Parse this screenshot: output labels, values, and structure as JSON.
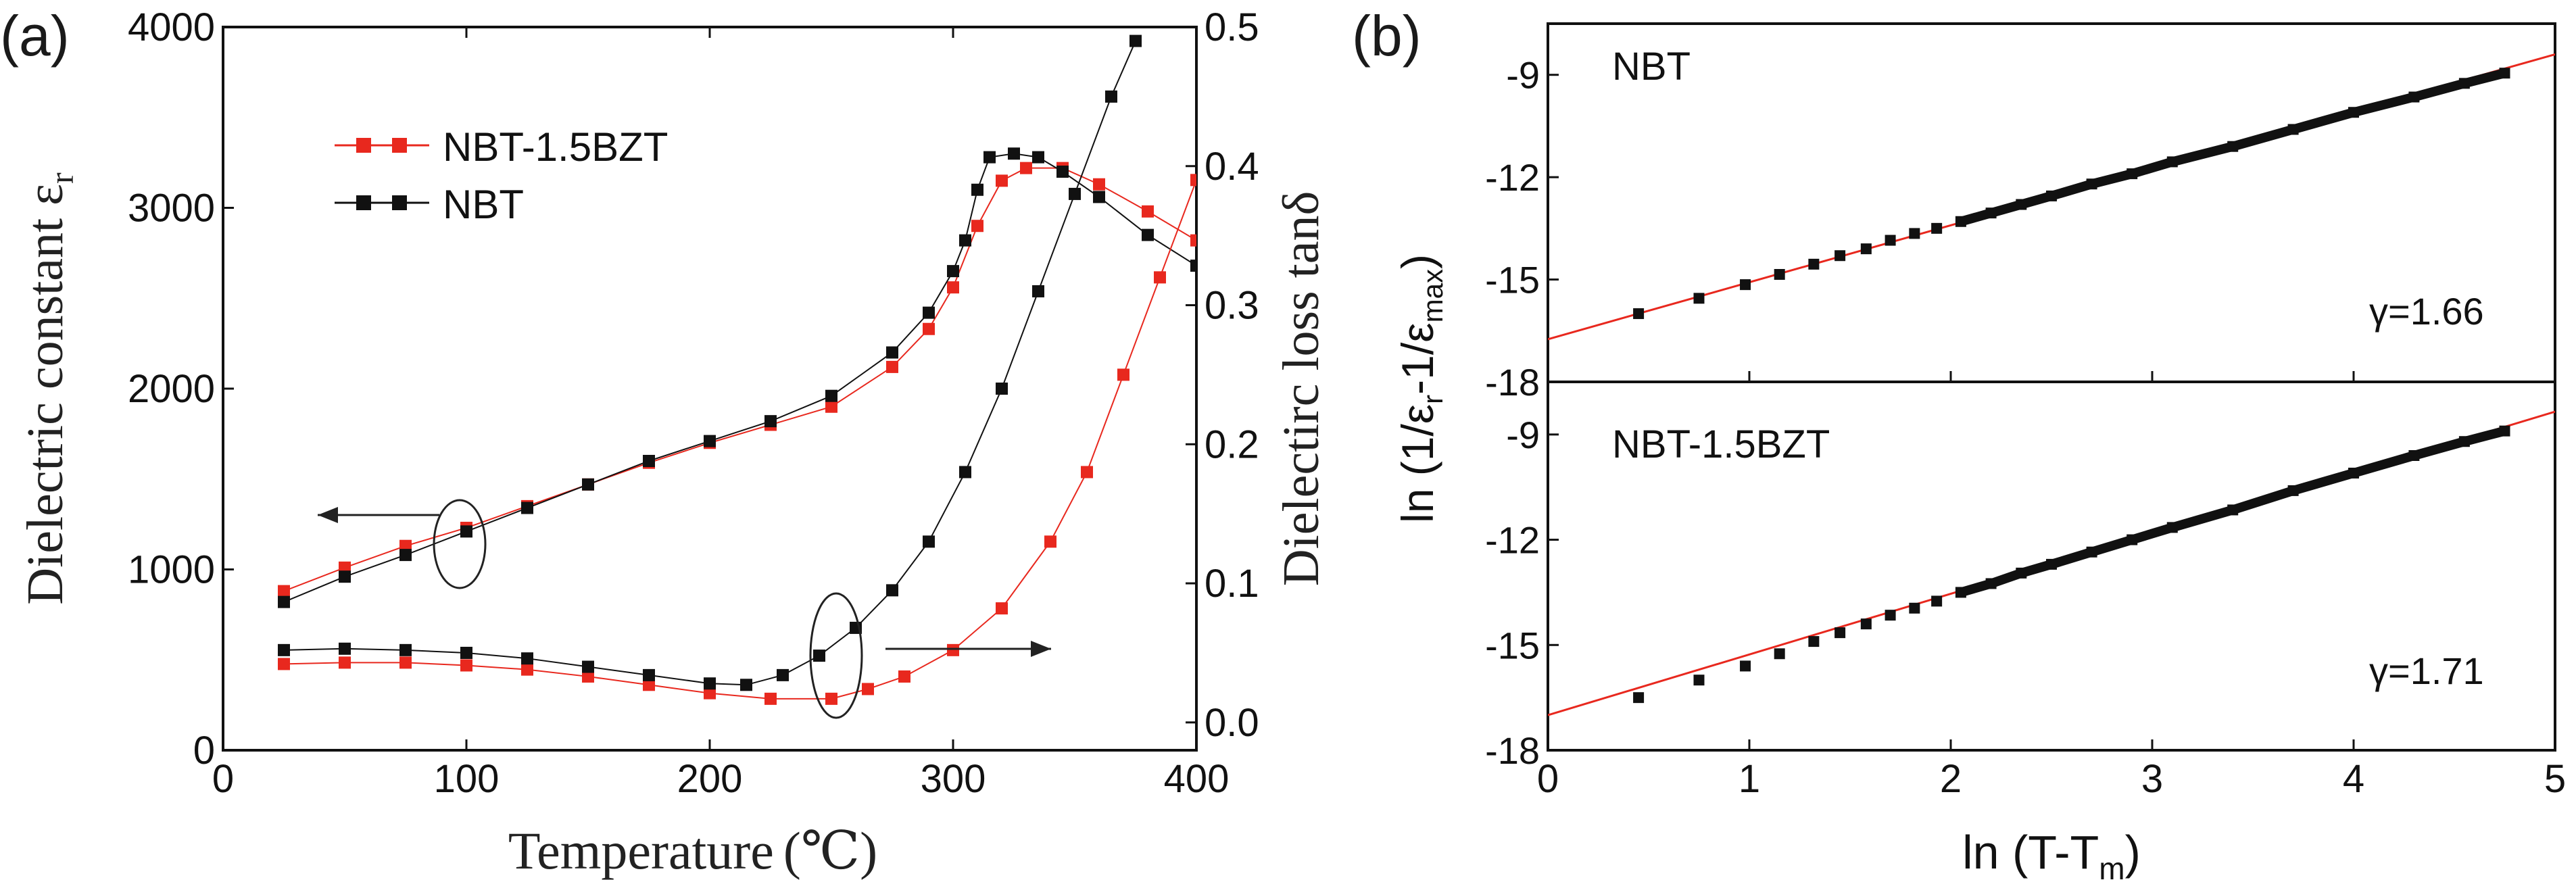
{
  "chart_data": [
    {
      "panel_label": "(a)",
      "type": "scatter",
      "title": "",
      "xlabel_main": "Temperature",
      "xlabel_unit": "(℃)",
      "ylabel_left": "Dielectric constant ε",
      "ylabel_left_sub": "r",
      "ylabel_right": "Dielectirc loss tanδ",
      "xlim": [
        0,
        400
      ],
      "ylim_left": [
        0,
        4000
      ],
      "ylim_right": [
        -0.02,
        0.5
      ],
      "x_ticks": [
        "0",
        "100",
        "200",
        "300",
        "400"
      ],
      "y_left_ticks": [
        "0",
        "1000",
        "2000",
        "3000",
        "4000"
      ],
      "y_right_ticks": [
        "0.0",
        "0.1",
        "0.2",
        "0.3",
        "0.4",
        "0.5"
      ],
      "legend": [
        {
          "name": "NBT-1.5BZT",
          "color": "#e8281e"
        },
        {
          "name": "NBT",
          "color": "#111111"
        }
      ],
      "series": [
        {
          "name": "NBT-1.5BZT",
          "quantity": "dielectric constant",
          "axis": "left",
          "color": "#e8281e",
          "x": [
            25,
            50,
            75,
            100,
            125,
            150,
            175,
            200,
            225,
            250,
            275,
            290,
            300,
            310,
            320,
            330,
            345,
            360,
            380,
            400
          ],
          "y": [
            880,
            1010,
            1130,
            1230,
            1350,
            1470,
            1590,
            1700,
            1800,
            1900,
            2120,
            2330,
            2560,
            2900,
            3150,
            3220,
            3220,
            3130,
            2980,
            2820
          ]
        },
        {
          "name": "NBT",
          "quantity": "dielectric constant",
          "axis": "left",
          "color": "#111111",
          "x": [
            25,
            50,
            75,
            100,
            125,
            150,
            175,
            200,
            225,
            250,
            275,
            290,
            300,
            305,
            310,
            315,
            325,
            335,
            345,
            360,
            380,
            400
          ],
          "y": [
            820,
            960,
            1080,
            1210,
            1340,
            1470,
            1600,
            1710,
            1820,
            1960,
            2200,
            2420,
            2650,
            2820,
            3100,
            3280,
            3300,
            3280,
            3200,
            3060,
            2850,
            2680
          ]
        },
        {
          "name": "NBT-1.5BZT",
          "quantity": "dielectric loss",
          "axis": "right",
          "color": "#e8281e",
          "x": [
            25,
            50,
            75,
            100,
            125,
            150,
            175,
            200,
            225,
            250,
            265,
            280,
            300,
            320,
            340,
            355,
            370,
            385,
            400
          ],
          "y": [
            0.042,
            0.043,
            0.043,
            0.041,
            0.038,
            0.033,
            0.027,
            0.021,
            0.017,
            0.017,
            0.024,
            0.033,
            0.052,
            0.082,
            0.13,
            0.18,
            0.25,
            0.32,
            0.39
          ]
        },
        {
          "name": "NBT",
          "quantity": "dielectric loss",
          "axis": "right",
          "color": "#111111",
          "x": [
            25,
            50,
            75,
            100,
            125,
            150,
            175,
            200,
            215,
            230,
            245,
            260,
            275,
            290,
            305,
            320,
            335,
            350,
            365,
            375
          ],
          "y": [
            0.052,
            0.053,
            0.052,
            0.05,
            0.046,
            0.04,
            0.034,
            0.028,
            0.027,
            0.034,
            0.048,
            0.068,
            0.095,
            0.13,
            0.18,
            0.24,
            0.31,
            0.38,
            0.45,
            0.49
          ]
        }
      ],
      "annotations": [
        {
          "text": "arrow left (dielectric constant → left axis)"
        },
        {
          "text": "arrow right (loss → right axis)"
        }
      ]
    },
    {
      "panel_label": "(b)",
      "type": "scatter",
      "xlabel": "ln (T-T",
      "xlabel_sub": "m",
      "ylabel_prefix": "ln (1/ε",
      "ylabel_sub1": "r",
      "ylabel_mid": "-1/ε",
      "ylabel_sub2": "max",
      "xlim": [
        0,
        5
      ],
      "x_ticks": [
        "0",
        "1",
        "2",
        "3",
        "4",
        "5"
      ],
      "subplots": [
        {
          "name": "NBT",
          "gamma_label": "γ=1.66",
          "ylim": [
            -18,
            -7.5
          ],
          "y_ticks": [
            "-9",
            "-12",
            "-15",
            "-18"
          ],
          "fit": {
            "color": "#e8281e",
            "x": [
              0,
              5
            ],
            "y": [
              -16.75,
              -8.4
            ]
          },
          "x": [
            0.45,
            0.75,
            0.98,
            1.15,
            1.32,
            1.45,
            1.58,
            1.7,
            1.82,
            1.93,
            2.05,
            2.2,
            2.35,
            2.5,
            2.7,
            2.9,
            3.1,
            3.4,
            3.7,
            4.0,
            4.3,
            4.55,
            4.75
          ],
          "y": [
            -16.0,
            -15.55,
            -15.15,
            -14.85,
            -14.55,
            -14.3,
            -14.1,
            -13.85,
            -13.65,
            -13.5,
            -13.3,
            -13.05,
            -12.8,
            -12.55,
            -12.2,
            -11.9,
            -11.55,
            -11.1,
            -10.6,
            -10.1,
            -9.65,
            -9.25,
            -8.95
          ]
        },
        {
          "name": "NBT-1.5BZT",
          "gamma_label": "γ=1.71",
          "ylim": [
            -18,
            -7.5
          ],
          "y_ticks": [
            "-9",
            "-12",
            "-15",
            "-18"
          ],
          "fit": {
            "color": "#e8281e",
            "x": [
              0,
              5
            ],
            "y": [
              -17.0,
              -8.35
            ]
          },
          "x": [
            0.45,
            0.75,
            0.98,
            1.15,
            1.32,
            1.45,
            1.58,
            1.7,
            1.82,
            1.93,
            2.05,
            2.2,
            2.35,
            2.5,
            2.7,
            2.9,
            3.1,
            3.4,
            3.7,
            4.0,
            4.3,
            4.55,
            4.75
          ],
          "y": [
            -16.5,
            -16.0,
            -15.6,
            -15.25,
            -14.9,
            -14.65,
            -14.4,
            -14.15,
            -13.95,
            -13.75,
            -13.5,
            -13.25,
            -12.95,
            -12.7,
            -12.35,
            -12.0,
            -11.65,
            -11.15,
            -10.6,
            -10.1,
            -9.6,
            -9.2,
            -8.9
          ]
        }
      ]
    }
  ]
}
